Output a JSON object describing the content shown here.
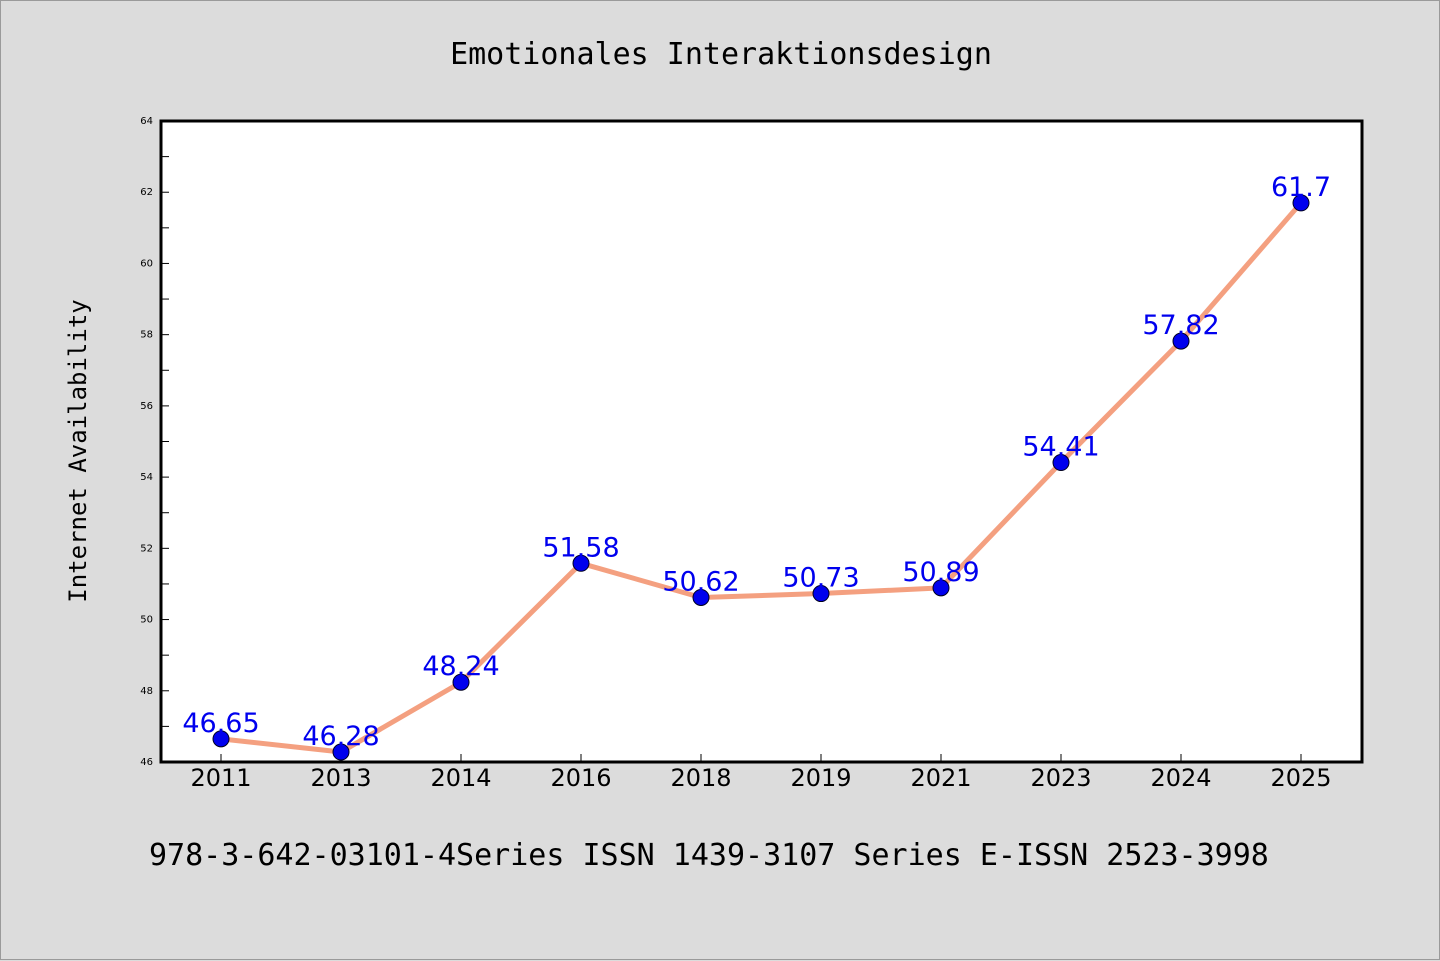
{
  "colors": {
    "background": "#dcdcdc",
    "plot_background": "#ffffff",
    "line": "#f4a080",
    "marker": "#0000ee",
    "data_label": "#0000ee",
    "axis": "#000000"
  },
  "chart_data": {
    "type": "line",
    "title": "Emotionales Interaktionsdesign",
    "xlabel": "",
    "ylabel": "Internet Availability",
    "categories": [
      "2011",
      "2013",
      "2014",
      "2016",
      "2018",
      "2019",
      "2021",
      "2023",
      "2024",
      "2025"
    ],
    "series": [
      {
        "values": [
          46.65,
          46.28,
          48.24,
          51.58,
          50.62,
          50.73,
          50.89,
          54.41,
          57.82,
          61.7
        ],
        "labels": [
          "46.65",
          "46.28",
          "48.24",
          "51.58",
          "50.62",
          "50.73",
          "50.89",
          "54.41",
          "57.82",
          "61.7"
        ]
      }
    ],
    "ylim": [
      46,
      64
    ],
    "yticks": [
      "46",
      "48",
      "50",
      "52",
      "54",
      "56",
      "58",
      "60",
      "62",
      "64"
    ],
    "grid": false,
    "legend": "none"
  },
  "footer": {
    "text": "978-3-642-03101-4Series ISSN 1439-3107 Series E-ISSN 2523-3998"
  }
}
